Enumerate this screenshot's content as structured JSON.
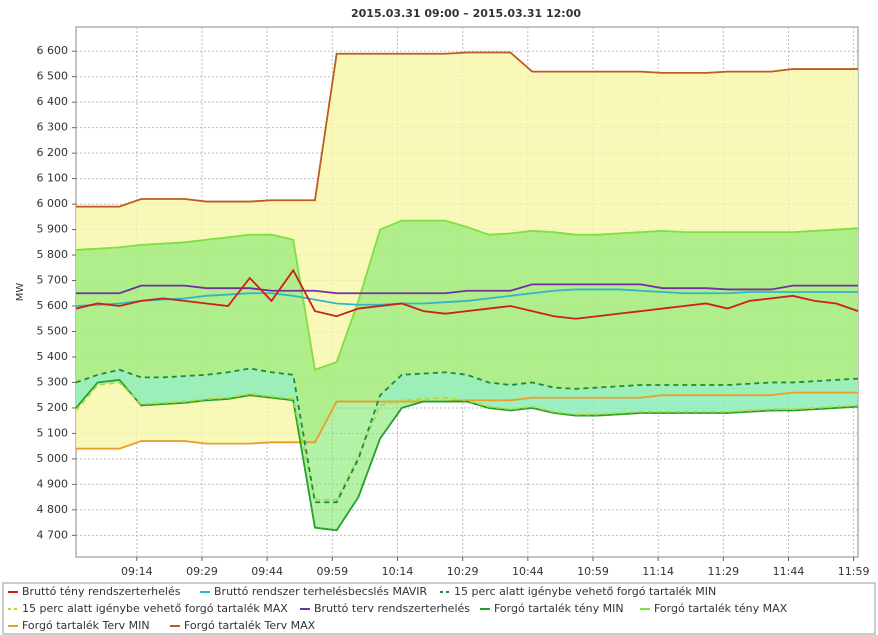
{
  "chart_data": {
    "type": "line",
    "title": "2015.03.31 09:00 – 2015.03.31 12:00",
    "y_label": "MW",
    "x": [
      "09:00",
      "09:05",
      "09:10",
      "09:15",
      "09:20",
      "09:25",
      "09:30",
      "09:35",
      "09:40",
      "09:45",
      "09:50",
      "09:55",
      "10:00",
      "10:05",
      "10:10",
      "10:15",
      "10:20",
      "10:25",
      "10:30",
      "10:35",
      "10:40",
      "10:45",
      "10:50",
      "10:55",
      "11:00",
      "11:05",
      "11:10",
      "11:15",
      "11:20",
      "11:25",
      "11:30",
      "11:35",
      "11:40",
      "11:45",
      "11:50",
      "11:55",
      "12:00"
    ],
    "xlim": [
      "09:00",
      "12:00"
    ],
    "xticks": [
      "09:14",
      "09:29",
      "09:44",
      "09:59",
      "10:14",
      "10:29",
      "10:44",
      "10:59",
      "11:14",
      "11:29",
      "11:44",
      "11:59"
    ],
    "ylim": [
      4615,
      6695
    ],
    "yticks": [
      {
        "value": 4700,
        "label": "4 700"
      },
      {
        "value": 4800,
        "label": "4 800"
      },
      {
        "value": 4900,
        "label": "4 900"
      },
      {
        "value": 5000,
        "label": "5 000"
      },
      {
        "value": 5100,
        "label": "5 100"
      },
      {
        "value": 5200,
        "label": "5 200"
      },
      {
        "value": 5300,
        "label": "5 300"
      },
      {
        "value": 5400,
        "label": "5 400"
      },
      {
        "value": 5500,
        "label": "5 500"
      },
      {
        "value": 5600,
        "label": "5 600"
      },
      {
        "value": 5700,
        "label": "5 700"
      },
      {
        "value": 5800,
        "label": "5 800"
      },
      {
        "value": 5900,
        "label": "5 900"
      },
      {
        "value": 6000,
        "label": "6 000"
      },
      {
        "value": 6100,
        "label": "6 100"
      },
      {
        "value": 6200,
        "label": "6 200"
      },
      {
        "value": 6300,
        "label": "6 300"
      },
      {
        "value": 6400,
        "label": "6 400"
      },
      {
        "value": 6500,
        "label": "6 500"
      },
      {
        "value": 6600,
        "label": "6 600"
      }
    ],
    "grid": true,
    "legend": "bottom",
    "series": [
      {
        "name": "Bruttó tény rendszerterhelés",
        "color": "#cc1f1f",
        "values": [
          5590,
          5610,
          5600,
          5620,
          5630,
          5620,
          5610,
          5600,
          5710,
          5620,
          5740,
          5580,
          5560,
          5590,
          5600,
          5610,
          5580,
          5570,
          5580,
          5590,
          5600,
          5580,
          5560,
          5550,
          5560,
          5570,
          5580,
          5590,
          5600,
          5610,
          5590,
          5620,
          5630,
          5640,
          5620,
          5610,
          5580
        ]
      },
      {
        "name": "Bruttó rendszer terhelésbecslés MAVIR",
        "color": "#33b5c8",
        "values": [
          5600,
          5605,
          5610,
          5620,
          5625,
          5630,
          5640,
          5645,
          5650,
          5650,
          5640,
          5625,
          5610,
          5605,
          5605,
          5610,
          5610,
          5615,
          5620,
          5630,
          5640,
          5650,
          5660,
          5665,
          5665,
          5665,
          5660,
          5655,
          5650,
          5650,
          5650,
          5655,
          5655,
          5655,
          5655,
          5655,
          5655
        ]
      },
      {
        "name": "15 perc alatt igénybe vehető forgó tartalék MIN",
        "color": "#1e8a3a",
        "dash": true,
        "values": [
          5300,
          5330,
          5350,
          5320,
          5320,
          5325,
          5330,
          5340,
          5355,
          5340,
          5330,
          4830,
          4830,
          5000,
          5250,
          5330,
          5335,
          5340,
          5330,
          5300,
          5290,
          5300,
          5280,
          5275,
          5280,
          5285,
          5290,
          5290,
          5290,
          5290,
          5290,
          5295,
          5300,
          5300,
          5305,
          5310,
          5315
        ]
      },
      {
        "name": "15 perc alatt igénybe vehető forgó tartalék MAX",
        "color": "#b8d830",
        "dash": true,
        "values": [
          5190,
          5290,
          5300,
          5215,
          5220,
          5225,
          5235,
          5240,
          5255,
          5245,
          5235,
          4840,
          4840,
          5010,
          5210,
          5230,
          5235,
          5240,
          5230,
          5205,
          5195,
          5205,
          5185,
          5175,
          5175,
          5180,
          5185,
          5185,
          5185,
          5185,
          5185,
          5190,
          5195,
          5195,
          5200,
          5205,
          5210
        ]
      },
      {
        "name": "Bruttó terv rendszerterhelés",
        "color": "#7030a0",
        "values": [
          5650,
          5650,
          5650,
          5680,
          5680,
          5680,
          5670,
          5670,
          5670,
          5660,
          5660,
          5660,
          5650,
          5650,
          5650,
          5650,
          5650,
          5650,
          5660,
          5660,
          5660,
          5685,
          5685,
          5685,
          5685,
          5685,
          5685,
          5670,
          5670,
          5670,
          5665,
          5665,
          5665,
          5680,
          5680,
          5680,
          5680
        ]
      },
      {
        "name": "Forgó tartalék tény MIN",
        "color": "#22a030",
        "values": [
          5200,
          5300,
          5310,
          5210,
          5215,
          5220,
          5230,
          5235,
          5250,
          5240,
          5230,
          4730,
          4720,
          4850,
          5080,
          5200,
          5225,
          5225,
          5225,
          5200,
          5190,
          5200,
          5180,
          5170,
          5170,
          5175,
          5180,
          5180,
          5180,
          5180,
          5180,
          5185,
          5190,
          5190,
          5195,
          5200,
          5205
        ]
      },
      {
        "name": "Forgó tartalék tény MAX",
        "color": "#7ee040",
        "values": [
          5820,
          5825,
          5830,
          5840,
          5845,
          5850,
          5860,
          5870,
          5880,
          5880,
          5860,
          5350,
          5380,
          5620,
          5900,
          5935,
          5935,
          5935,
          5910,
          5880,
          5885,
          5895,
          5890,
          5880,
          5880,
          5885,
          5890,
          5895,
          5890,
          5890,
          5890,
          5890,
          5890,
          5890,
          5895,
          5900,
          5905
        ]
      },
      {
        "name": "Forgó tartalék Terv MIN",
        "color": "#e8a028",
        "values": [
          5040,
          5040,
          5040,
          5070,
          5070,
          5070,
          5060,
          5060,
          5060,
          5065,
          5065,
          5065,
          5225,
          5225,
          5225,
          5225,
          5225,
          5225,
          5230,
          5230,
          5230,
          5240,
          5240,
          5240,
          5240,
          5240,
          5240,
          5250,
          5250,
          5250,
          5250,
          5250,
          5250,
          5260,
          5260,
          5260,
          5260
        ]
      },
      {
        "name": "Forgó tartalék Terv MAX",
        "color": "#c05a1e",
        "values": [
          5990,
          5990,
          5990,
          6020,
          6020,
          6020,
          6010,
          6010,
          6010,
          6015,
          6015,
          6015,
          6590,
          6590,
          6590,
          6590,
          6590,
          6590,
          6595,
          6595,
          6595,
          6520,
          6520,
          6520,
          6520,
          6520,
          6520,
          6515,
          6515,
          6515,
          6520,
          6520,
          6520,
          6530,
          6530,
          6530,
          6530
        ]
      }
    ]
  }
}
